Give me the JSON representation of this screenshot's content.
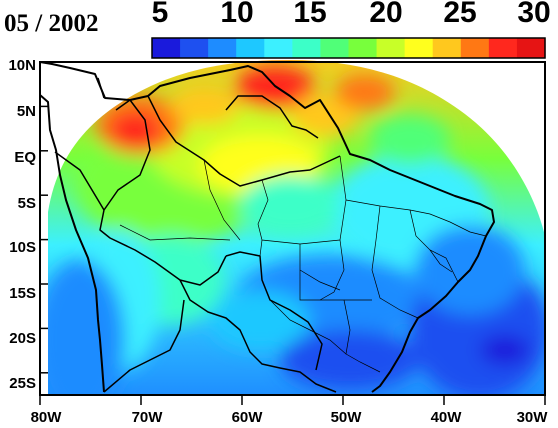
{
  "title": {
    "date": "05 / 2002"
  },
  "colorbar": {
    "tick_labels": [
      "5",
      "10",
      "15",
      "20",
      "25",
      "30"
    ],
    "min": 5,
    "max": 30,
    "colors": [
      "#1a1adc",
      "#1e50f0",
      "#1e8cff",
      "#1ec8ff",
      "#3cf0ff",
      "#3cffc8",
      "#50ff78",
      "#78ff3c",
      "#c8ff28",
      "#ffff1e",
      "#ffc81e",
      "#ff7814",
      "#ff281e",
      "#e61414"
    ]
  },
  "axes": {
    "lat_labels": [
      "10N",
      "5N",
      "EQ",
      "5S",
      "10S",
      "15S",
      "20S",
      "25S"
    ],
    "lon_labels": [
      "80W",
      "70W",
      "60W",
      "50W",
      "40W",
      "30W"
    ]
  },
  "chart_data": {
    "type": "heatmap",
    "title": "05 / 2002",
    "xlim": [
      -80,
      -30
    ],
    "ylim": [
      -27.5,
      10
    ],
    "lon_ticks": [
      -80,
      -70,
      -60,
      -50,
      -40,
      -30
    ],
    "lat_ticks": [
      10,
      5,
      0,
      -5,
      -10,
      -15,
      -20,
      -25
    ],
    "scale": [
      5,
      30
    ],
    "regions": [
      {
        "lon_range": [
          -70,
          -65
        ],
        "lat_range": [
          2,
          8
        ],
        "approx_value": 29
      },
      {
        "lon_range": [
          -62,
          -52
        ],
        "lat_range": [
          3,
          9
        ],
        "approx_value": 28
      },
      {
        "lon_range": [
          -65,
          -55
        ],
        "lat_range": [
          -3,
          3
        ],
        "approx_value": 24
      },
      {
        "lon_range": [
          -75,
          -60
        ],
        "lat_range": [
          -10,
          -3
        ],
        "approx_value": 20
      },
      {
        "lon_range": [
          -55,
          -40
        ],
        "lat_range": [
          -10,
          -2
        ],
        "approx_value": 16
      },
      {
        "lon_range": [
          -60,
          -45
        ],
        "lat_range": [
          -20,
          -12
        ],
        "approx_value": 11
      },
      {
        "lon_range": [
          -45,
          -32
        ],
        "lat_range": [
          -27,
          -15
        ],
        "approx_value": 8
      }
    ]
  }
}
